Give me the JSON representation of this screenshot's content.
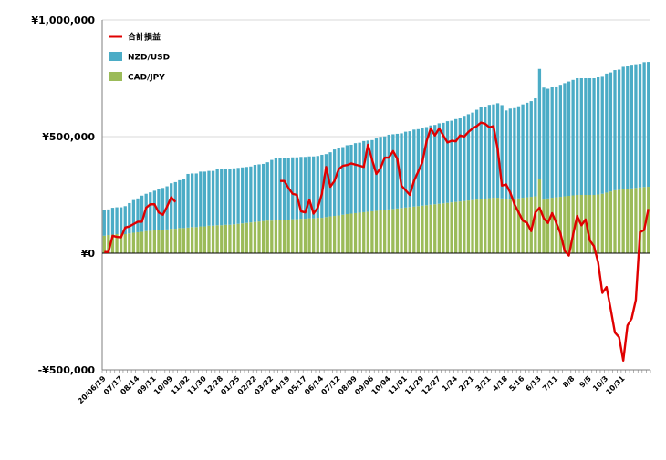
{
  "chart_data": {
    "type": "bar",
    "stacked": true,
    "y_axis": {
      "min": -500000,
      "max": 1000000,
      "ticks": [
        1000000,
        500000,
        0,
        -500000
      ],
      "tick_labels": [
        "¥1,000,000",
        "¥500,000",
        "¥0",
        "-¥500,000"
      ]
    },
    "x_tick_labels": [
      "20/06/19",
      "07/17",
      "08/14",
      "09/11",
      "10/09",
      "11/02",
      "11/30",
      "12/28",
      "01/25",
      "02/22",
      "03/22",
      "04/19",
      "05/17",
      "06/14",
      "07/12",
      "08/09",
      "09/06",
      "10/04",
      "11/01",
      "11/29",
      "12/27",
      "1/24",
      "2/21",
      "3/21",
      "4/18",
      "5/16",
      "6/13",
      "7/11",
      "8/8",
      "9/5",
      "10/3",
      "10/31"
    ],
    "x_tick_positions": [
      0,
      4,
      8,
      12,
      16,
      20,
      24,
      28,
      32,
      36,
      40,
      44,
      48,
      52,
      56,
      60,
      64,
      68,
      72,
      76,
      80,
      84,
      88,
      92,
      96,
      100,
      104,
      108,
      112,
      116,
      120,
      124
    ],
    "legend_position": "top-left",
    "series": [
      {
        "name": "合計損益",
        "kind": "line",
        "color": "#e00000",
        "values": [
          5000,
          5000,
          75000,
          70000,
          68000,
          110000,
          115000,
          125000,
          135000,
          135000,
          195000,
          210000,
          210000,
          175000,
          165000,
          200000,
          240000,
          220000,
          null,
          null,
          null,
          null,
          null,
          null,
          null,
          null,
          null,
          null,
          null,
          null,
          null,
          null,
          null,
          null,
          null,
          null,
          null,
          null,
          null,
          null,
          null,
          null,
          310000,
          310000,
          280000,
          255000,
          250000,
          180000,
          175000,
          230000,
          170000,
          195000,
          255000,
          370000,
          285000,
          310000,
          360000,
          375000,
          378000,
          385000,
          380000,
          375000,
          370000,
          465000,
          400000,
          340000,
          365000,
          410000,
          410000,
          438000,
          405000,
          290000,
          270000,
          250000,
          310000,
          350000,
          390000,
          480000,
          535000,
          505000,
          535000,
          505000,
          475000,
          482000,
          480000,
          505000,
          500000,
          520000,
          535000,
          545000,
          560000,
          555000,
          540000,
          545000,
          445000,
          290000,
          295000,
          260000,
          210000,
          175000,
          140000,
          130000,
          95000,
          175000,
          195000,
          150000,
          130000,
          172000,
          130000,
          85000,
          10000,
          -10000,
          80000,
          160000,
          120000,
          145000,
          55000,
          30000,
          -40000,
          -170000,
          -145000,
          -240000,
          -340000,
          -360000,
          -460000,
          -310000,
          -280000,
          -200000,
          90000,
          100000,
          190000
        ],
        "gaps_note": ""
      },
      {
        "name": "NZD/USD",
        "kind": "bar",
        "color": "#4bacc6",
        "values": [
          110000,
          110000,
          115000,
          115000,
          115000,
          120000,
          130000,
          140000,
          145000,
          155000,
          160000,
          165000,
          170000,
          175000,
          180000,
          185000,
          195000,
          200000,
          205000,
          210000,
          230000,
          230000,
          230000,
          235000,
          235000,
          235000,
          235000,
          240000,
          240000,
          240000,
          240000,
          240000,
          240000,
          240000,
          240000,
          240000,
          245000,
          245000,
          245000,
          250000,
          260000,
          265000,
          265000,
          265000,
          265000,
          265000,
          265000,
          265000,
          265000,
          265000,
          265000,
          265000,
          270000,
          270000,
          275000,
          285000,
          290000,
          290000,
          295000,
          295000,
          300000,
          300000,
          305000,
          305000,
          305000,
          310000,
          315000,
          315000,
          320000,
          320000,
          320000,
          320000,
          325000,
          325000,
          330000,
          330000,
          335000,
          335000,
          340000,
          340000,
          345000,
          345000,
          350000,
          350000,
          355000,
          360000,
          365000,
          370000,
          375000,
          385000,
          395000,
          395000,
          400000,
          400000,
          405000,
          400000,
          380000,
          390000,
          390000,
          395000,
          400000,
          405000,
          410000,
          420000,
          470000,
          480000,
          470000,
          475000,
          475000,
          480000,
          485000,
          490000,
          495000,
          500000,
          500000,
          500000,
          500000,
          500000,
          505000,
          505000,
          510000,
          510000,
          515000,
          515000,
          525000,
          525000,
          530000,
          530000,
          530000,
          535000,
          535000
        ],
        "gaps_note": ""
      },
      {
        "name": "CAD/JPY",
        "kind": "bar",
        "color": "#9bbb59",
        "values": [
          75000,
          78000,
          80000,
          82000,
          82000,
          82000,
          85000,
          88000,
          90000,
          92000,
          95000,
          96000,
          98000,
          100000,
          100000,
          102000,
          105000,
          105000,
          108000,
          108000,
          110000,
          112000,
          112000,
          115000,
          115000,
          118000,
          118000,
          120000,
          120000,
          122000,
          122000,
          124000,
          126000,
          128000,
          130000,
          132000,
          134000,
          136000,
          138000,
          140000,
          140000,
          142000,
          142000,
          144000,
          144000,
          146000,
          146000,
          148000,
          148000,
          150000,
          150000,
          152000,
          152000,
          155000,
          158000,
          160000,
          162000,
          165000,
          168000,
          170000,
          172000,
          174000,
          176000,
          178000,
          180000,
          182000,
          184000,
          186000,
          188000,
          190000,
          192000,
          194000,
          196000,
          198000,
          200000,
          202000,
          204000,
          206000,
          208000,
          210000,
          212000,
          214000,
          216000,
          218000,
          220000,
          222000,
          224000,
          226000,
          228000,
          230000,
          232000,
          234000,
          236000,
          238000,
          238000,
          235000,
          232000,
          230000,
          232000,
          235000,
          238000,
          240000,
          242000,
          244000,
          320000,
          230000,
          235000,
          238000,
          240000,
          242000,
          244000,
          246000,
          248000,
          250000,
          250000,
          250000,
          250000,
          250000,
          252000,
          255000,
          260000,
          265000,
          270000,
          272000,
          274000,
          276000,
          278000,
          280000,
          282000,
          284000,
          285000
        ],
        "gaps_note": ""
      }
    ]
  }
}
